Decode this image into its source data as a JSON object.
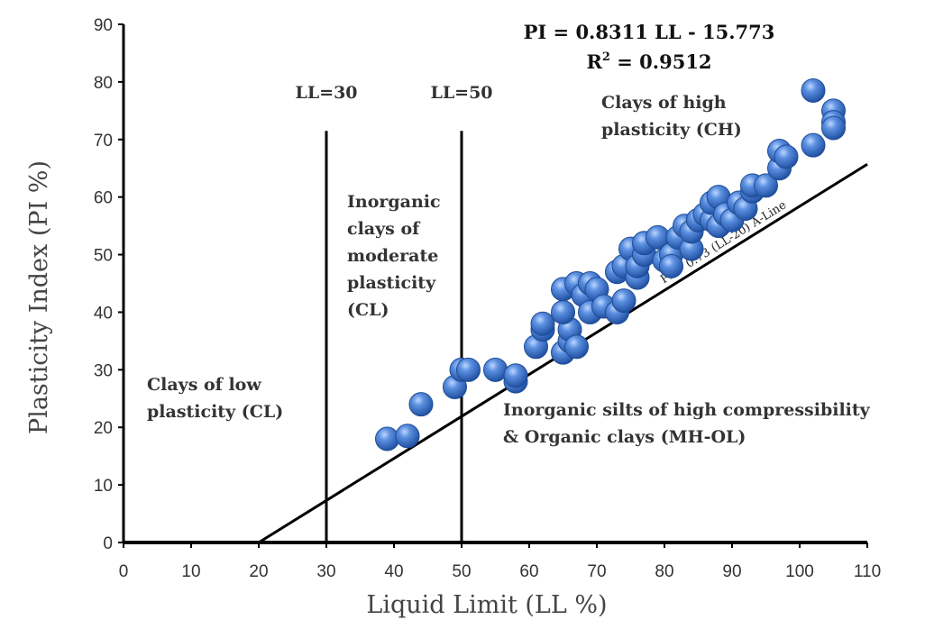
{
  "chart_data": {
    "type": "scatter",
    "title": "",
    "xlabel": "Liquid Limit (LL %)",
    "ylabel": "Plasticity Index (PI %)",
    "xlim": [
      0,
      110
    ],
    "ylim": [
      0,
      90
    ],
    "x_ticks": [
      "0",
      "10",
      "20",
      "30",
      "40",
      "50",
      "60",
      "70",
      "80",
      "90",
      "100",
      "110"
    ],
    "y_ticks": [
      "0",
      "10",
      "20",
      "30",
      "40",
      "50",
      "60",
      "70",
      "80",
      "90"
    ],
    "x_tick_values": [
      0,
      10,
      20,
      30,
      40,
      50,
      60,
      70,
      80,
      90,
      100,
      110
    ],
    "y_tick_values": [
      0,
      10,
      20,
      30,
      40,
      50,
      60,
      70,
      80,
      90
    ],
    "grid": false,
    "marker_color": "#3f73c9",
    "trend_equation": "PI = 0.8311 LL - 15.773",
    "r_squared_label": "R",
    "r_squared_sup": "2",
    "r_squared_value": " = 0.9512",
    "a_line": {
      "label": "PI = 0.73 (LL-20)  A-Line",
      "slope": 0.73,
      "intercept_ll": 20,
      "x_end": 110
    },
    "vertical_lines": [
      {
        "x": 30,
        "y_top": 71.5,
        "label": "LL=30"
      },
      {
        "x": 50,
        "y_top": 71.5,
        "label": "LL=50"
      }
    ],
    "regions": [
      {
        "name": "low",
        "lines": [
          "Clays of  low",
          "plasticity (CL)"
        ]
      },
      {
        "name": "moderate",
        "lines": [
          "Inorganic",
          "clays of",
          "moderate",
          "plasticity",
          "(CL)"
        ]
      },
      {
        "name": "high",
        "lines": [
          "Clays of high",
          "plasticity (CH)"
        ]
      },
      {
        "name": "mh-ol",
        "lines": [
          "Inorganic silts of high compressibility",
          "& Organic clays (MH-OL)"
        ]
      }
    ],
    "points": [
      {
        "x": 39,
        "y": 18
      },
      {
        "x": 42,
        "y": 18.5
      },
      {
        "x": 44,
        "y": 24
      },
      {
        "x": 49,
        "y": 27
      },
      {
        "x": 50,
        "y": 30
      },
      {
        "x": 51,
        "y": 30
      },
      {
        "x": 55,
        "y": 30
      },
      {
        "x": 58,
        "y": 28
      },
      {
        "x": 58,
        "y": 29
      },
      {
        "x": 61,
        "y": 34
      },
      {
        "x": 62,
        "y": 37
      },
      {
        "x": 62,
        "y": 38
      },
      {
        "x": 65,
        "y": 33
      },
      {
        "x": 66,
        "y": 35
      },
      {
        "x": 66,
        "y": 37
      },
      {
        "x": 67,
        "y": 34
      },
      {
        "x": 65,
        "y": 40
      },
      {
        "x": 65,
        "y": 44
      },
      {
        "x": 67,
        "y": 45
      },
      {
        "x": 68,
        "y": 43
      },
      {
        "x": 69,
        "y": 45
      },
      {
        "x": 70,
        "y": 44
      },
      {
        "x": 69,
        "y": 40
      },
      {
        "x": 71,
        "y": 41
      },
      {
        "x": 73,
        "y": 40
      },
      {
        "x": 74,
        "y": 42
      },
      {
        "x": 73,
        "y": 47
      },
      {
        "x": 74,
        "y": 48
      },
      {
        "x": 75,
        "y": 51
      },
      {
        "x": 76,
        "y": 46
      },
      {
        "x": 76,
        "y": 48
      },
      {
        "x": 77,
        "y": 50
      },
      {
        "x": 77,
        "y": 52
      },
      {
        "x": 79,
        "y": 53
      },
      {
        "x": 80,
        "y": 49
      },
      {
        "x": 81,
        "y": 50
      },
      {
        "x": 81,
        "y": 48
      },
      {
        "x": 82,
        "y": 53
      },
      {
        "x": 83,
        "y": 55
      },
      {
        "x": 84,
        "y": 51
      },
      {
        "x": 84,
        "y": 54
      },
      {
        "x": 85,
        "y": 56
      },
      {
        "x": 86,
        "y": 57
      },
      {
        "x": 87,
        "y": 56
      },
      {
        "x": 87,
        "y": 59
      },
      {
        "x": 88,
        "y": 60
      },
      {
        "x": 88,
        "y": 55
      },
      {
        "x": 89,
        "y": 57
      },
      {
        "x": 90,
        "y": 56
      },
      {
        "x": 91,
        "y": 59
      },
      {
        "x": 92,
        "y": 58
      },
      {
        "x": 93,
        "y": 61
      },
      {
        "x": 93,
        "y": 62
      },
      {
        "x": 95,
        "y": 62
      },
      {
        "x": 97,
        "y": 65
      },
      {
        "x": 97,
        "y": 68
      },
      {
        "x": 98,
        "y": 67
      },
      {
        "x": 102,
        "y": 69
      },
      {
        "x": 102,
        "y": 78.5
      },
      {
        "x": 105,
        "y": 75
      },
      {
        "x": 105,
        "y": 73
      },
      {
        "x": 105,
        "y": 72
      }
    ]
  }
}
